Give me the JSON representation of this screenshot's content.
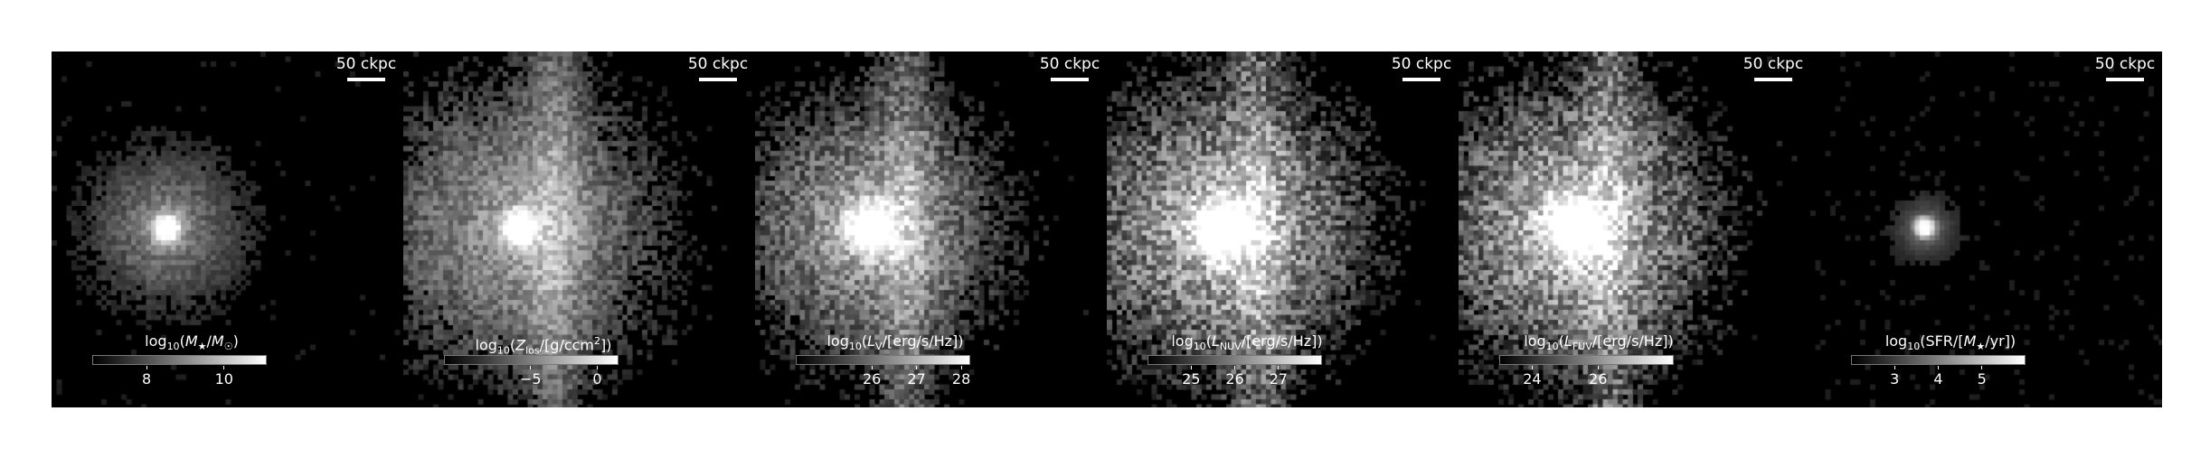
{
  "scalebar_label": "50 ckpc",
  "panels": [
    {
      "id": "mass",
      "cb_ticks": [
        {
          "value": 8,
          "label": "8"
        },
        {
          "value": 10,
          "label": "10"
        }
      ],
      "cb_range": [
        6.6,
        11.1
      ],
      "core": {
        "amp": 1.0,
        "sigma": 0.18
      },
      "halo": {
        "amp": 0.45,
        "sigma": 0.85
      },
      "noise": 0.25,
      "sparsity": 0.78
    },
    {
      "id": "metal",
      "cb_ticks": [
        {
          "value": -5,
          "label": "−5"
        },
        {
          "value": 0,
          "label": "0"
        }
      ],
      "cb_range": [
        -11.5,
        1.6
      ],
      "core": {
        "amp": 1.0,
        "sigma": 0.22
      },
      "halo": {
        "amp": 0.55,
        "sigma": 1.6
      },
      "noise": 0.35,
      "sparsity": 0.55
    },
    {
      "id": "lv",
      "cb_ticks": [
        {
          "value": 26,
          "label": "26"
        },
        {
          "value": 27,
          "label": "27"
        },
        {
          "value": 28,
          "label": "28"
        }
      ],
      "cb_range": [
        24.3,
        28.2
      ],
      "core": {
        "amp": 1.0,
        "sigma": 0.3
      },
      "halo": {
        "amp": 0.6,
        "sigma": 1.4
      },
      "noise": 0.45,
      "sparsity": 0.6
    },
    {
      "id": "lnuv",
      "cb_ticks": [
        {
          "value": 25,
          "label": "25"
        },
        {
          "value": 26,
          "label": "26"
        },
        {
          "value": 27,
          "label": "27"
        }
      ],
      "cb_range": [
        24.0,
        28.0
      ],
      "core": {
        "amp": 1.0,
        "sigma": 0.35
      },
      "halo": {
        "amp": 0.7,
        "sigma": 1.5
      },
      "noise": 0.6,
      "sparsity": 0.6
    },
    {
      "id": "lfuv",
      "cb_ticks": [
        {
          "value": 24,
          "label": "24"
        },
        {
          "value": 26,
          "label": "26"
        }
      ],
      "cb_range": [
        23.0,
        28.3
      ],
      "core": {
        "amp": 1.0,
        "sigma": 0.35
      },
      "halo": {
        "amp": 0.7,
        "sigma": 1.5
      },
      "noise": 0.6,
      "sparsity": 0.55
    },
    {
      "id": "sfr",
      "cb_ticks": [
        {
          "value": 3,
          "label": "3"
        },
        {
          "value": 4,
          "label": "4"
        },
        {
          "value": 5,
          "label": "5"
        }
      ],
      "cb_range": [
        2.0,
        6.0
      ],
      "core": {
        "amp": 1.0,
        "sigma": 0.12
      },
      "halo": {
        "amp": 0.3,
        "sigma": 0.35
      },
      "noise": 0.1,
      "sparsity": 0.95
    }
  ]
}
